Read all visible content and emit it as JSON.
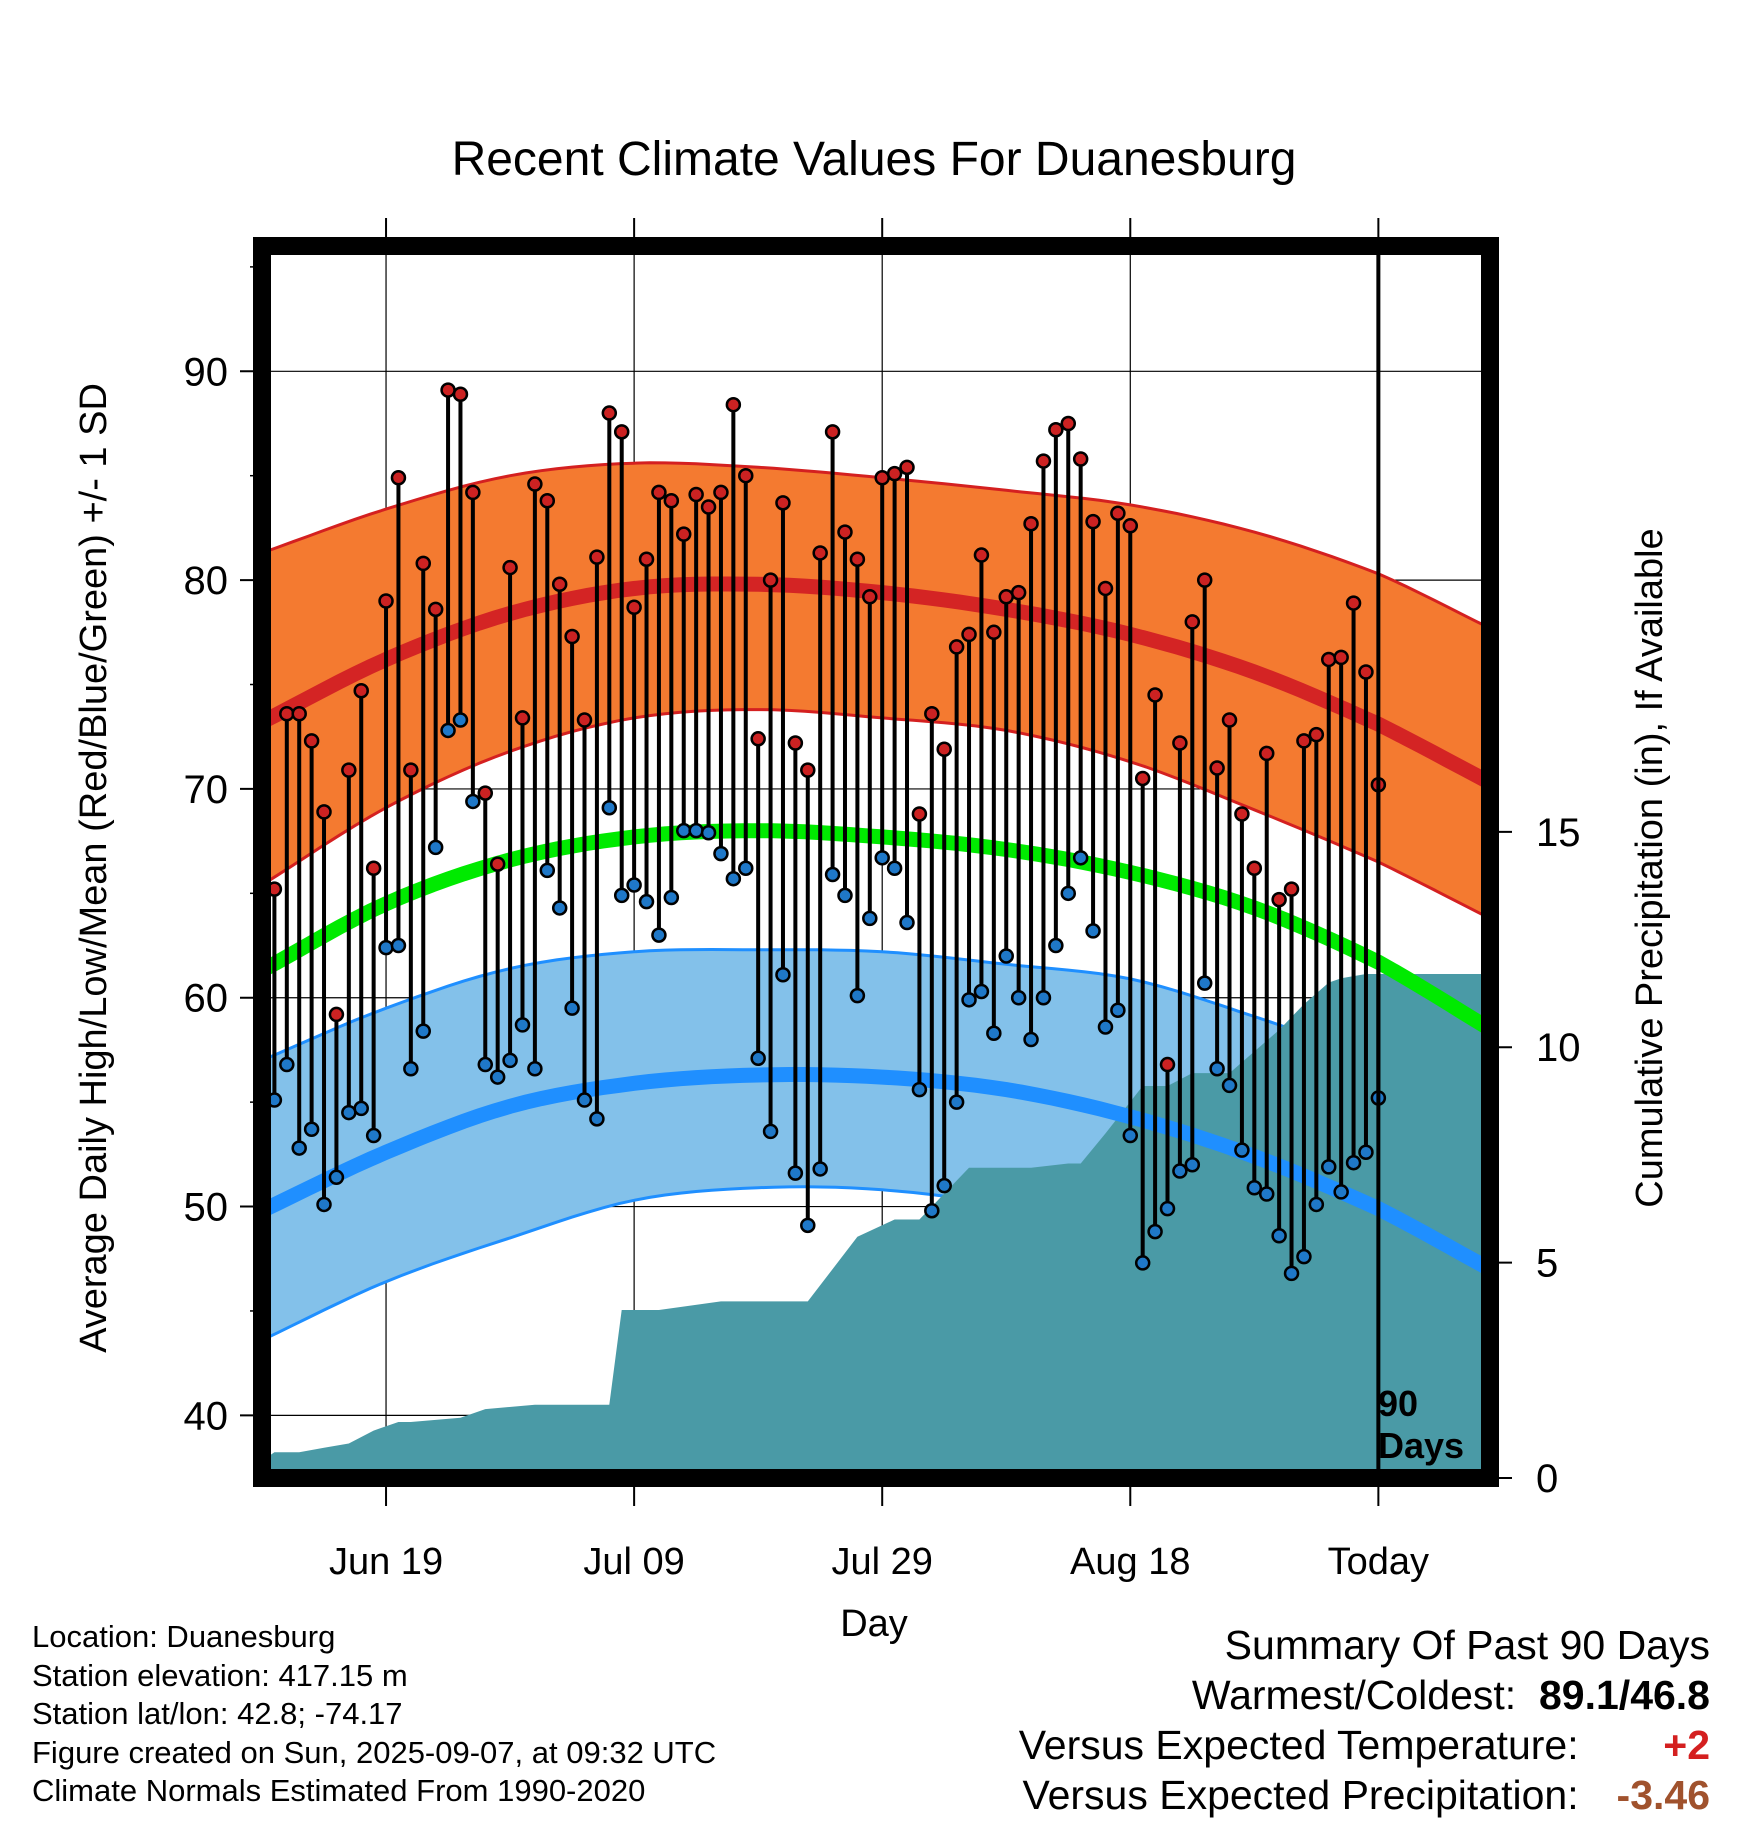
{
  "chart_data": {
    "type": "line",
    "title": "Recent Climate Values For Duanesburg",
    "xlabel": "Day",
    "ylabel": "Average Daily High/Low/Mean (Red/Blue/Green) +/- 1 SD",
    "y2label": "Cumulative Precipitation (in), If Available",
    "ylim": [
      37,
      96
    ],
    "y2lim": [
      0,
      28.6
    ],
    "y_ticks": [
      40,
      50,
      60,
      70,
      80,
      90
    ],
    "y2_ticks": [
      0,
      5,
      10,
      15
    ],
    "x_tick_labels": [
      "Jun 19",
      "Jul 09",
      "Jul 29",
      "Aug 18",
      "Today"
    ],
    "x_tick_days": [
      -80,
      -60,
      -40,
      -20,
      0
    ],
    "x_range_days": [
      -90,
      9
    ],
    "marker_label": "90",
    "marker_label2": "Days",
    "series": [
      {
        "name": "Daily High",
        "color": "#cc2222",
        "values": [
          65.2,
          73.6,
          73.6,
          72.3,
          68.9,
          59.2,
          70.9,
          74.7,
          66.2,
          79.0,
          84.9,
          70.9,
          80.8,
          78.6,
          89.1,
          88.9,
          84.2,
          69.8,
          66.4,
          80.6,
          73.4,
          84.6,
          83.8,
          79.8,
          77.3,
          73.3,
          81.1,
          88.0,
          87.1,
          78.7,
          81.0,
          84.2,
          83.8,
          82.2,
          84.1,
          83.5,
          84.2,
          88.4,
          85.0,
          72.4,
          80.0,
          83.7,
          72.2,
          70.9,
          81.3,
          87.1,
          82.3,
          81.0,
          79.2,
          84.9,
          85.1,
          85.4,
          68.8,
          73.6,
          71.9,
          76.8,
          77.4,
          81.2,
          77.5,
          79.2,
          79.4,
          82.7,
          85.7,
          87.2,
          87.5,
          85.8,
          82.8,
          79.6,
          83.2,
          82.6,
          70.5,
          74.5,
          56.8,
          72.2,
          78.0,
          80.0,
          71.0,
          73.3,
          68.8,
          66.2,
          71.7,
          64.7,
          65.2,
          72.3,
          72.6,
          76.2,
          76.3,
          78.9,
          75.6,
          70.2
        ]
      },
      {
        "name": "Daily Low",
        "color": "#1f78c8",
        "values": [
          55.1,
          56.8,
          52.8,
          53.7,
          50.1,
          51.4,
          54.5,
          54.7,
          53.4,
          62.4,
          62.5,
          56.6,
          58.4,
          67.2,
          72.8,
          73.3,
          69.4,
          56.8,
          56.2,
          57.0,
          58.7,
          56.6,
          66.1,
          64.3,
          59.5,
          55.1,
          54.2,
          69.1,
          64.9,
          65.4,
          64.6,
          63.0,
          64.8,
          68.0,
          68.0,
          67.9,
          66.9,
          65.7,
          66.2,
          57.1,
          53.6,
          61.1,
          51.6,
          49.1,
          51.8,
          65.9,
          64.9,
          60.1,
          63.8,
          66.7,
          66.2,
          63.6,
          55.6,
          49.8,
          51.0,
          55.0,
          59.9,
          60.3,
          58.3,
          62.0,
          60.0,
          58.0,
          60.0,
          62.5,
          65.0,
          66.7,
          63.2,
          58.6,
          59.4,
          53.4,
          47.3,
          48.8,
          49.9,
          51.7,
          52.0,
          60.7,
          56.6,
          55.8,
          52.7,
          50.9,
          50.6,
          48.6,
          46.8,
          47.6,
          50.1,
          51.9,
          50.7,
          52.1,
          52.6,
          55.2
        ]
      },
      {
        "name": "Normal High",
        "color": "#cc2222",
        "x": [
          -90,
          -80,
          -70,
          -60,
          -50,
          -40,
          -30,
          -20,
          -10,
          0,
          9
        ],
        "values": [
          73.2,
          76.2,
          78.4,
          79.6,
          79.8,
          79.4,
          78.6,
          77.4,
          75.6,
          73.1,
          70.3
        ],
        "sd_upper": [
          81.3,
          83.4,
          85.0,
          85.6,
          85.4,
          84.9,
          84.3,
          83.6,
          82.3,
          80.3,
          77.7
        ],
        "sd_lower": [
          65.4,
          69.1,
          71.8,
          73.4,
          73.8,
          73.4,
          72.8,
          71.3,
          69.0,
          66.5,
          63.8
        ]
      },
      {
        "name": "Normal Low",
        "color": "#1f8fff",
        "x": [
          -90,
          -80,
          -70,
          -60,
          -50,
          -40,
          -30,
          -20,
          -10,
          0,
          9
        ],
        "values": [
          49.8,
          52.6,
          54.8,
          55.9,
          56.3,
          56.2,
          55.6,
          54.3,
          52.4,
          49.9,
          47.0
        ],
        "sd_upper": [
          57.0,
          59.5,
          61.4,
          62.2,
          62.3,
          62.2,
          61.6,
          60.9,
          59.1,
          57.0,
          54.8
        ],
        "sd_lower": [
          43.6,
          46.4,
          48.5,
          50.3,
          50.9,
          50.8,
          50.0,
          48.3,
          45.7,
          42.0,
          38.4
        ]
      },
      {
        "name": "Normal Mean",
        "color": "#00dd00",
        "x": [
          -90,
          -80,
          -70,
          -60,
          -50,
          -40,
          -30,
          -20,
          -10,
          0,
          9
        ],
        "values": [
          61.3,
          64.5,
          66.6,
          67.7,
          68.0,
          67.7,
          67.1,
          66.0,
          64.3,
          61.7,
          58.5
        ]
      },
      {
        "name": "Cumulative Precipitation",
        "color": "#4a9aa6",
        "x": [
          -90,
          -89,
          -88,
          -87,
          -85,
          -83,
          -81,
          -79,
          -78,
          -74,
          -72,
          -68,
          -65,
          -62,
          -61,
          -58,
          -53,
          -50,
          -46,
          -42,
          -39,
          -37,
          -33,
          -28,
          -25,
          -24,
          -22,
          -19,
          -17,
          -15,
          -12,
          -10,
          -8,
          -6,
          -4,
          -3,
          -1,
          0,
          2,
          9
        ],
        "values": [
          0.4,
          0.6,
          0.6,
          0.6,
          0.7,
          0.8,
          1.1,
          1.3,
          1.3,
          1.4,
          1.6,
          1.7,
          1.7,
          1.7,
          3.9,
          3.9,
          4.1,
          4.1,
          4.1,
          5.6,
          6.0,
          6.0,
          7.2,
          7.2,
          7.3,
          7.3,
          8.0,
          9.1,
          9.1,
          9.4,
          9.4,
          9.9,
          10.4,
          11.0,
          11.5,
          11.6,
          11.7,
          11.7,
          11.7,
          11.7
        ]
      }
    ]
  },
  "info": {
    "location": "Location: Duanesburg",
    "elevation": "Station elevation: 417.15 m",
    "latlon": "Station lat/lon: 42.8; -74.17",
    "created": "Figure created on Sun, 2025-09-07, at 09:32 UTC",
    "normals": "Climate Normals Estimated From 1990-2020"
  },
  "summary": {
    "heading": "Summary Of Past 90 Days",
    "warm_label": "Warmest/Coldest:",
    "warm_val": "89.1",
    "slash": "/",
    "cold_val": "46.8",
    "temp_label": "Versus Expected Temperature:",
    "temp_val": "+2",
    "temp_color": "#d42020",
    "precip_label": "Versus Expected Precipitation:",
    "precip_val": "-3.46",
    "precip_color": "#a0522d"
  }
}
